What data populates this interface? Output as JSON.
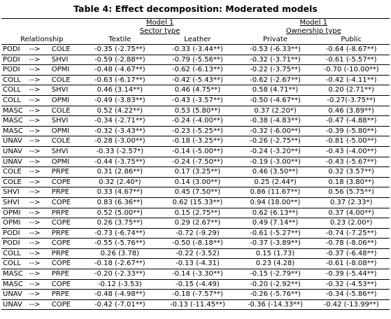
{
  "title": "Table 4: Effect decomposition: Moderated models",
  "header": {
    "model_left": "Model 1",
    "group_left": "Sector type",
    "model_right": "Model 1",
    "group_right": "Ownership type",
    "relationship": "Relationship",
    "col_textile": "Textile",
    "col_leather": "Leather",
    "col_private": "Private",
    "col_public": "Public"
  },
  "rows": [
    {
      "from": "PODI",
      "arrow": "-->",
      "to": "COLE",
      "textile": "-0.35 (-2.75**)",
      "leather": "-0.33 (-3.44**)",
      "private": "-0.53 (-6.33**)",
      "public": "-0.64 (-8.67**)"
    },
    {
      "from": "PODI",
      "arrow": "-->",
      "to": "SHVI",
      "textile": "-0.59 (-2.88**)",
      "leather": "-0.79 (-5.56**)",
      "private": "-0.32 (-3.71**)",
      "public": "-0.61 (-5.57**)"
    },
    {
      "from": "PODI",
      "arrow": "-->",
      "to": "OPMI",
      "textile": "-0.48 (-4.67**)",
      "leather": "-0.62 (-6.13**)",
      "private": "-0.22 (-3.75**)",
      "public": "-0.70 (-10.00**)"
    },
    {
      "from": "COLL",
      "arrow": "-->",
      "to": "COLE",
      "textile": "-0.63 (-6.17**)",
      "leather": "-0.42 (-5.43**)",
      "private": "-0.62 (-2.67**)",
      "public": "-0.42 (-4.11**)"
    },
    {
      "from": "COLL",
      "arrow": "-->",
      "to": "SHVI",
      "textile": "0.46 (3.14**)",
      "leather": "0.46 (4.75**)",
      "private": "0.58 (4.71**)",
      "public": "0.20 (2.71**)"
    },
    {
      "from": "COLL",
      "arrow": "-->",
      "to": "OPMI",
      "textile": "-0.49 (-3.83**)",
      "leather": "-0.43 (-3.57**)",
      "private": "-0.50 (-4.67**)",
      "public": "-0.27(-3.75**)"
    },
    {
      "from": "MASC",
      "arrow": "-->",
      "to": "COLE",
      "textile": "0.52 (4.22**)",
      "leather": "0.53 (5.80**)",
      "private": "0.37 (2.20*)",
      "public": "0.46 (3.89**)"
    },
    {
      "from": "MASC",
      "arrow": "-->",
      "to": "SHVI",
      "textile": "-0.34 (-2.71**)",
      "leather": "-0.24 (-4.00**)",
      "private": "-0.38 (-4.83**)",
      "public": "-0.47 (-4.88**)"
    },
    {
      "from": "MASC",
      "arrow": "-->",
      "to": "OPMI",
      "textile": "-0.32 (-3.43**)",
      "leather": "-0.23 (-5.25**)",
      "private": "-0.32 (-6.00**)",
      "public": "-0.39 (-5.80**)"
    },
    {
      "from": "UNAV",
      "arrow": "-->",
      "to": "COLE",
      "textile": "-0.28 (-3.00**)",
      "leather": "-0.18 (-3.25**)",
      "private": "-0.26 (-2.75**)",
      "public": "-0.81 (-5.00**)"
    },
    {
      "from": "UNAV",
      "arrow": "-->",
      "to": "SHVI",
      "textile": "-0.33 (-2.57*)",
      "leather": "-0.14 (-5.00**)",
      "private": "-0.24 (-3.20**)",
      "public": "-0.43 (-4.00**)"
    },
    {
      "from": "UNAV",
      "arrow": "-->",
      "to": "OPMI",
      "textile": "-0.44 (-3.75**)",
      "leather": "-0.24 (-7.50**)",
      "private": "-0.19 (-3.00**)",
      "public": "-0.43 (-5.67**)"
    },
    {
      "from": "COLE",
      "arrow": "-->",
      "to": "PRPE",
      "textile": "0.31 (2.86**)",
      "leather": "0.17 (3.25**)",
      "private": "0.46 (3.50**)",
      "public": "0.32 (3.57**)"
    },
    {
      "from": "COLE",
      "arrow": "-->",
      "to": "COPE",
      "textile": "0.32 (2.40*)",
      "leather": "0.14 (3.00**)",
      "private": "0.25 (2.44*)",
      "public": "0.18 (3.80**)"
    },
    {
      "from": "SHVI",
      "arrow": "-->",
      "to": "PRPE",
      "textile": "0.33 (4.67**)",
      "leather": "0.45 (7.50**)",
      "private": "0.86 (11.67**)",
      "public": "0.56 (5.75**)"
    },
    {
      "from": "SHVI",
      "arrow": "-->",
      "to": "COPE",
      "textile": "0.83 (6.36**)",
      "leather": "0.62 (15.33**)",
      "private": "0.94 (18.00**)",
      "public": "0.37 (2.33*)"
    },
    {
      "from": "OPMI",
      "arrow": "-->",
      "to": "PRPE",
      "textile": "0.52 (5.00**)",
      "leather": "0.15 (2.75**)",
      "private": "0.62 (6.13**)",
      "public": "0.37 (4.00**)"
    },
    {
      "from": "OPMI",
      "arrow": "-->",
      "to": "COPE",
      "textile": "0.26 (3.75**)",
      "leather": "0.29 (2.67**)",
      "private": "0.49 (7.14**)",
      "public": "0.23 (2.00*)"
    },
    {
      "from": "PODI",
      "arrow": "-->",
      "to": "PRPE",
      "textile": "-0.73 (-6.74**)",
      "leather": "-0.72 (-9.29)",
      "private": "-0.61 (-5.27**)",
      "public": "-0.74 (-7.25**)"
    },
    {
      "from": "PODI",
      "arrow": "-->",
      "to": "COPE",
      "textile": "-0.55 (-5.76**)",
      "leather": "-0.50 (-8.18**)",
      "private": "-0.37 (-3.89**)",
      "public": "-0.78 (-8.06**)"
    },
    {
      "from": "COLL",
      "arrow": "-->",
      "to": "PRPE",
      "textile": "0.26 (3.78)",
      "leather": "-0.22 (-3.52)",
      "private": "0.15 (1.73)",
      "public": "-0.37 (-6.48**)"
    },
    {
      "from": "COLL",
      "arrow": "-->",
      "to": "COPE",
      "textile": "-0.18 (-2.67**)",
      "leather": "-0.13 (-4.31)",
      "private": "0.23 (4.28)",
      "public": "-0.61 (-8.08**)"
    },
    {
      "from": "MASC",
      "arrow": "-->",
      "to": "PRPE",
      "textile": "-0.20 (-2.33**)",
      "leather": "-0.14 (-3.30**)",
      "private": "-0.15 (-2.79**)",
      "public": "-0.39 (-5.44**)"
    },
    {
      "from": "MASC",
      "arrow": "-->",
      "to": "COPE",
      "textile": "-0.12 (-3.53)",
      "leather": "-0.15 (-4.49)",
      "private": "-0.20 (-2.92**)",
      "public": "-0.32 (-4.53**)"
    },
    {
      "from": "UNAV",
      "arrow": "-->",
      "to": "PRPE",
      "textile": "-0.48 (-4.98**)",
      "leather": "-0.18 (-7.57**)",
      "private": "-0.26 (-5.76**)",
      "public": "-0.34 (-5.86**)"
    },
    {
      "from": "UNAV",
      "arrow": "-->",
      "to": "COPE",
      "textile": "-0.42 (-7.01**)",
      "leather": "-0.13 (-11.45**)",
      "private": "-0.36 (-14.33**)",
      "public": "-0.42 (-13.99**)"
    }
  ]
}
